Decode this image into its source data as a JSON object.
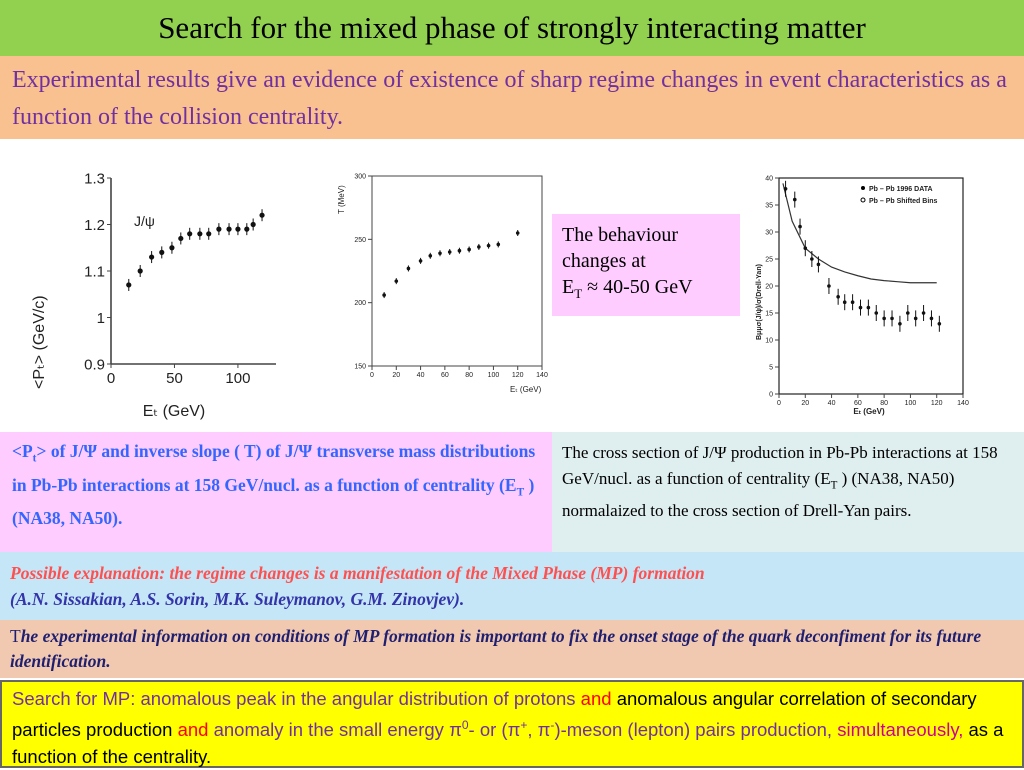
{
  "title": "Search for the mixed phase of strongly interacting matter",
  "intro": "Experimental results give an evidence of existence of sharp regime changes in event characteristics as a function of the collision centrality.",
  "plot1": {
    "ylabel": "<Pₜ> (GeV/c)",
    "xlabel": "Eₜ (GeV)",
    "annotation": "J/ψ",
    "yticks": [
      "0.9",
      "1",
      "1.1",
      "1.2",
      "1.3"
    ],
    "xticks": [
      "0",
      "50",
      "100"
    ]
  },
  "plot2": {
    "ylabel": "T (MeV)",
    "xlabel": "Eₜ (GeV)",
    "yticks": [
      "150",
      "200",
      "250",
      "300"
    ],
    "xticks": [
      "0",
      "20",
      "40",
      "60",
      "80",
      "100",
      "120",
      "140"
    ]
  },
  "plot3": {
    "ylabel": "Bμμσ(J/ψ)/σ(Drell-Yan)",
    "xlabel": "Eₜ (GeV)",
    "legend1": "Pb – Pb 1996 DATA",
    "legend2": "Pb – Pb Shifted Bins",
    "yticks": [
      "0",
      "5",
      "10",
      "15",
      "20",
      "25",
      "30",
      "35",
      "40"
    ],
    "xticks": [
      "0",
      "20",
      "40",
      "60",
      "80",
      "100",
      "120",
      "140"
    ]
  },
  "note": {
    "line1": "The behaviour",
    "line2": "changes at",
    "line3_pre": "E",
    "line3_sub": "T",
    "line3_post": " ≈ 40-50 GeV"
  },
  "caption_left": {
    "p1": "<P",
    "p1sub": "t",
    "p2": ">  of J/Ψ and inverse slope ( T) of J/Ψ transverse mass distributions in Pb-Pb interactions at 158 GeV/nucl. as a function of  centrality (E",
    "p2sub": "T",
    "p3": " ) (NA38, NA50)."
  },
  "caption_right": {
    "p1": "The cross section of J/Ψ production in Pb-Pb interactions at 158 GeV/nucl. as a function of centrality (E",
    "p1sub": "T",
    "p2": " ) (NA38, NA50) normalaized  to the cross section of Drell-Yan pairs."
  },
  "possible": {
    "red": "Possible explanation: the regime changes is a manifestation  of the Mixed Phase (MP) formation",
    "blue": "(A.N. Sissakian,  A.S. Sorin,  M.K. Suleymanov, G.M. Zinovjev)."
  },
  "experimental": {
    "first": "T",
    "rest": "he experimental information on conditions of MP formation is important to fix the onset stage of the quark deconfiment for its future identification."
  },
  "search_mp": {
    "s1": "Search for MP: ",
    "s2": "anomalous peak in the angular distribution of protons",
    "s3": " and ",
    "s4": "anomalous angular correlation of secondary particles production ",
    "s5": "and",
    "s6": " anomaly in the small energy ",
    "s7": "π",
    "s7sup": "0",
    "s8": "- or (",
    "s9": "π",
    "s9sup": "+",
    "s10": ", ",
    "s11": "π",
    "s11sup": "-",
    "s12": ")-meson (lepton) pairs production, ",
    "s13": "simultaneously,",
    "s14": " as a function of  the centrality."
  },
  "colors": {
    "title_bg": "#92d050",
    "intro_bg": "#f9c090",
    "note_bg": "#ffccff",
    "caption_right_bg": "#dfeeee",
    "possible_bg": "#c5e6f7",
    "experimental_bg": "#f1c8b0",
    "search_bg": "#ffff00"
  },
  "chart_data": [
    {
      "type": "scatter",
      "x": [
        14,
        23,
        32,
        40,
        48,
        55,
        62,
        70,
        77,
        85,
        93,
        100,
        107,
        112,
        119
      ],
      "y": [
        1.07,
        1.1,
        1.13,
        1.14,
        1.15,
        1.17,
        1.18,
        1.18,
        1.18,
        1.19,
        1.19,
        1.19,
        1.19,
        1.2,
        1.22
      ],
      "xlim": [
        0,
        130
      ],
      "ylim": [
        0.9,
        1.3
      ]
    },
    {
      "type": "scatter",
      "x": [
        10,
        20,
        30,
        40,
        48,
        56,
        64,
        72,
        80,
        88,
        96,
        104,
        120
      ],
      "y": [
        206,
        217,
        227,
        233,
        237,
        239,
        240,
        241,
        242,
        244,
        245,
        246,
        255
      ],
      "xlim": [
        0,
        140
      ],
      "ylim": [
        150,
        300
      ]
    },
    {
      "type": "scatter",
      "x": [
        5,
        12,
        16,
        20,
        25,
        30,
        38,
        45,
        50,
        56,
        62,
        68,
        74,
        80,
        86,
        92,
        98,
        104,
        110,
        116,
        122
      ],
      "y": [
        38,
        36,
        31,
        27,
        25,
        24,
        20,
        18,
        17,
        17,
        16,
        16,
        15,
        14,
        14,
        13,
        15,
        14,
        15,
        14,
        13
      ],
      "curve_x": [
        3,
        10,
        20,
        30,
        40,
        50,
        60,
        70,
        80,
        90,
        100,
        110,
        120
      ],
      "curve_y": [
        39,
        32,
        27,
        25,
        23.5,
        22.6,
        21.9,
        21.3,
        21,
        20.8,
        20.6,
        20.6,
        20.6
      ],
      "xlim": [
        0,
        140
      ],
      "ylim": [
        0,
        40
      ]
    }
  ]
}
